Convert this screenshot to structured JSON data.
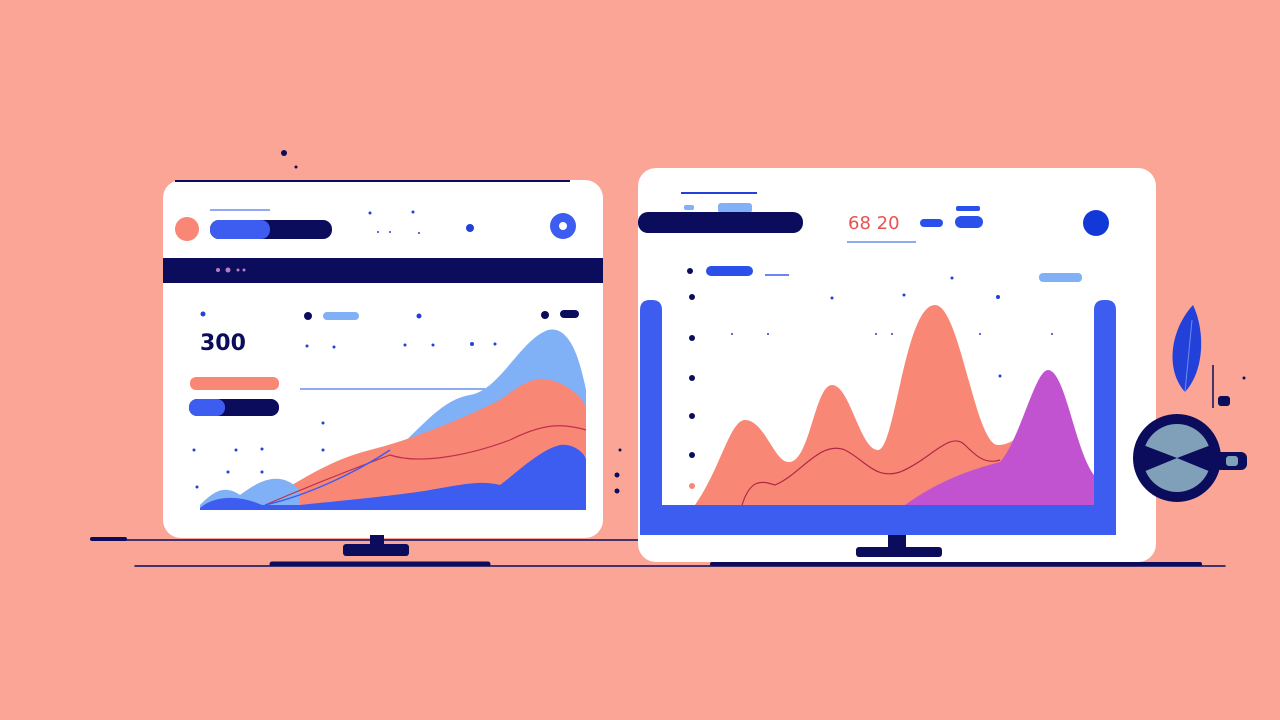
{
  "left_panel": {
    "metric_value": "300"
  },
  "right_panel": {
    "metric_value": "68 20"
  },
  "colors": {
    "background": "#fba596",
    "navy": "#0b0c5c",
    "blue": "#3d5cf0",
    "light_blue": "#80b0f5",
    "salmon": "#f98776",
    "magenta": "#c253d0",
    "panel": "#ffffff"
  }
}
